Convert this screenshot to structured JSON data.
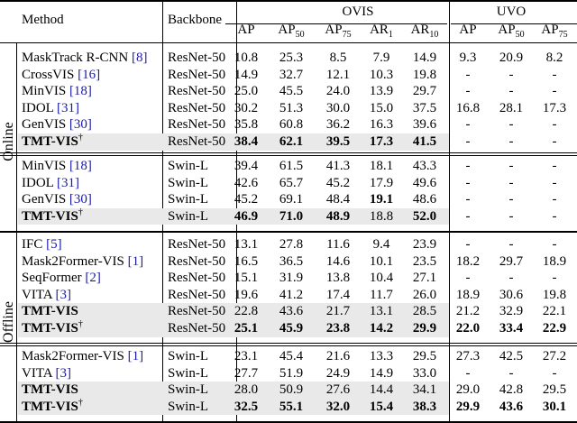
{
  "headers": {
    "method": "Method",
    "backbone": "Backbone",
    "ovis": "OVIS",
    "uvo": "UVO",
    "cols": [
      "AP",
      "AP50",
      "AP75",
      "AR1",
      "AR10",
      "AP",
      "AP50",
      "AP75"
    ]
  },
  "section_labels": {
    "online": "Online",
    "offline": "Offline"
  },
  "groups": [
    {
      "section": "online",
      "rows": [
        {
          "method": "MaskTrack R-CNN",
          "cite": "[8]",
          "backbone": "ResNet-50",
          "vals": [
            "10.8",
            "25.3",
            "8.5",
            "7.9",
            "14.9",
            "9.3",
            "20.9",
            "8.2"
          ],
          "bold": [],
          "highlight": false,
          "method_bold": false
        },
        {
          "method": "CrossVIS",
          "cite": "[16]",
          "backbone": "ResNet-50",
          "vals": [
            "14.9",
            "32.7",
            "12.1",
            "10.3",
            "19.8",
            "-",
            "-",
            "-"
          ],
          "bold": [],
          "highlight": false,
          "method_bold": false
        },
        {
          "method": "MinVIS",
          "cite": "[18]",
          "backbone": "ResNet-50",
          "vals": [
            "25.0",
            "45.5",
            "24.0",
            "13.9",
            "29.7",
            "-",
            "-",
            "-"
          ],
          "bold": [],
          "highlight": false,
          "method_bold": false
        },
        {
          "method": "IDOL",
          "cite": "[31]",
          "backbone": "ResNet-50",
          "vals": [
            "30.2",
            "51.3",
            "30.0",
            "15.0",
            "37.5",
            "16.8",
            "28.1",
            "17.3"
          ],
          "bold": [],
          "highlight": false,
          "method_bold": false
        },
        {
          "method": "GenVIS",
          "cite": "[30]",
          "backbone": "ResNet-50",
          "vals": [
            "35.8",
            "60.8",
            "36.2",
            "16.3",
            "39.6",
            "-",
            "-",
            "-"
          ],
          "bold": [],
          "highlight": false,
          "method_bold": false
        },
        {
          "method": "TMT-VIS",
          "sup": "†",
          "backbone": "ResNet-50",
          "vals": [
            "38.4",
            "62.1",
            "39.5",
            "17.3",
            "41.5",
            "-",
            "-",
            "-"
          ],
          "bold": [
            0,
            1,
            2,
            3,
            4
          ],
          "highlight": true,
          "method_bold": true
        }
      ]
    },
    {
      "section": "online",
      "rows": [
        {
          "method": "MinVIS",
          "cite": "[18]",
          "backbone": "Swin-L",
          "vals": [
            "39.4",
            "61.5",
            "41.3",
            "18.1",
            "43.3",
            "-",
            "-",
            "-"
          ],
          "bold": [],
          "highlight": false,
          "method_bold": false
        },
        {
          "method": "IDOL",
          "cite": "[31]",
          "backbone": "Swin-L",
          "vals": [
            "42.6",
            "65.7",
            "45.2",
            "17.9",
            "49.6",
            "-",
            "-",
            "-"
          ],
          "bold": [],
          "highlight": false,
          "method_bold": false
        },
        {
          "method": "GenVIS",
          "cite": "[30]",
          "backbone": "Swin-L",
          "vals": [
            "45.2",
            "69.1",
            "48.4",
            "19.1",
            "48.6",
            "-",
            "-",
            "-"
          ],
          "bold": [
            3
          ],
          "highlight": false,
          "method_bold": false
        },
        {
          "method": "TMT-VIS",
          "sup": "†",
          "backbone": "Swin-L",
          "vals": [
            "46.9",
            "71.0",
            "48.9",
            "18.8",
            "52.0",
            "-",
            "-",
            "-"
          ],
          "bold": [
            0,
            1,
            2,
            4
          ],
          "highlight": true,
          "method_bold": true
        }
      ]
    },
    {
      "section": "offline",
      "rows": [
        {
          "method": "IFC",
          "cite": "[5]",
          "backbone": "ResNet-50",
          "vals": [
            "13.1",
            "27.8",
            "11.6",
            "9.4",
            "23.9",
            "-",
            "-",
            "-"
          ],
          "bold": [],
          "highlight": false,
          "method_bold": false
        },
        {
          "method": "Mask2Former-VIS",
          "cite": "[1]",
          "backbone": "ResNet-50",
          "vals": [
            "16.5",
            "36.5",
            "14.6",
            "10.1",
            "23.5",
            "18.2",
            "29.7",
            "18.9"
          ],
          "bold": [],
          "highlight": false,
          "method_bold": false
        },
        {
          "method": "SeqFormer",
          "cite": "[2]",
          "backbone": "ResNet-50",
          "vals": [
            "15.1",
            "31.9",
            "13.8",
            "10.4",
            "27.1",
            "-",
            "-",
            "-"
          ],
          "bold": [],
          "highlight": false,
          "method_bold": false
        },
        {
          "method": "VITA",
          "cite": "[3]",
          "backbone": "ResNet-50",
          "vals": [
            "19.6",
            "41.2",
            "17.4",
            "11.7",
            "26.0",
            "18.9",
            "30.6",
            "19.8"
          ],
          "bold": [],
          "highlight": false,
          "method_bold": false
        },
        {
          "method": "TMT-VIS",
          "backbone": "ResNet-50",
          "vals": [
            "22.8",
            "43.6",
            "21.7",
            "13.1",
            "28.5",
            "21.2",
            "32.9",
            "22.1"
          ],
          "bold": [],
          "highlight": true,
          "method_bold": true
        },
        {
          "method": "TMT-VIS",
          "sup": "†",
          "backbone": "ResNet-50",
          "vals": [
            "25.1",
            "45.9",
            "23.8",
            "14.2",
            "29.9",
            "22.0",
            "33.4",
            "22.9"
          ],
          "bold": [
            0,
            1,
            2,
            3,
            4,
            5,
            6,
            7
          ],
          "highlight": true,
          "method_bold": true
        }
      ]
    },
    {
      "section": "offline",
      "rows": [
        {
          "method": "Mask2Former-VIS",
          "cite": "[1]",
          "backbone": "Swin-L",
          "vals": [
            "23.1",
            "45.4",
            "21.6",
            "13.3",
            "29.5",
            "27.3",
            "42.5",
            "27.2"
          ],
          "bold": [],
          "highlight": false,
          "method_bold": false
        },
        {
          "method": "VITA",
          "cite": "[3]",
          "backbone": "Swin-L",
          "vals": [
            "27.7",
            "51.9",
            "24.9",
            "14.9",
            "33.0",
            "-",
            "-",
            "-"
          ],
          "bold": [],
          "highlight": false,
          "method_bold": false
        },
        {
          "method": "TMT-VIS",
          "backbone": "Swin-L",
          "vals": [
            "28.0",
            "50.9",
            "27.6",
            "14.4",
            "34.1",
            "29.0",
            "42.8",
            "29.5"
          ],
          "bold": [],
          "highlight": true,
          "method_bold": true
        },
        {
          "method": "TMT-VIS",
          "sup": "†",
          "backbone": "Swin-L",
          "vals": [
            "32.5",
            "55.1",
            "32.0",
            "15.4",
            "38.3",
            "29.9",
            "43.6",
            "30.1"
          ],
          "bold": [
            0,
            1,
            2,
            3,
            4,
            5,
            6,
            7
          ],
          "highlight": true,
          "method_bold": true
        }
      ]
    }
  ]
}
